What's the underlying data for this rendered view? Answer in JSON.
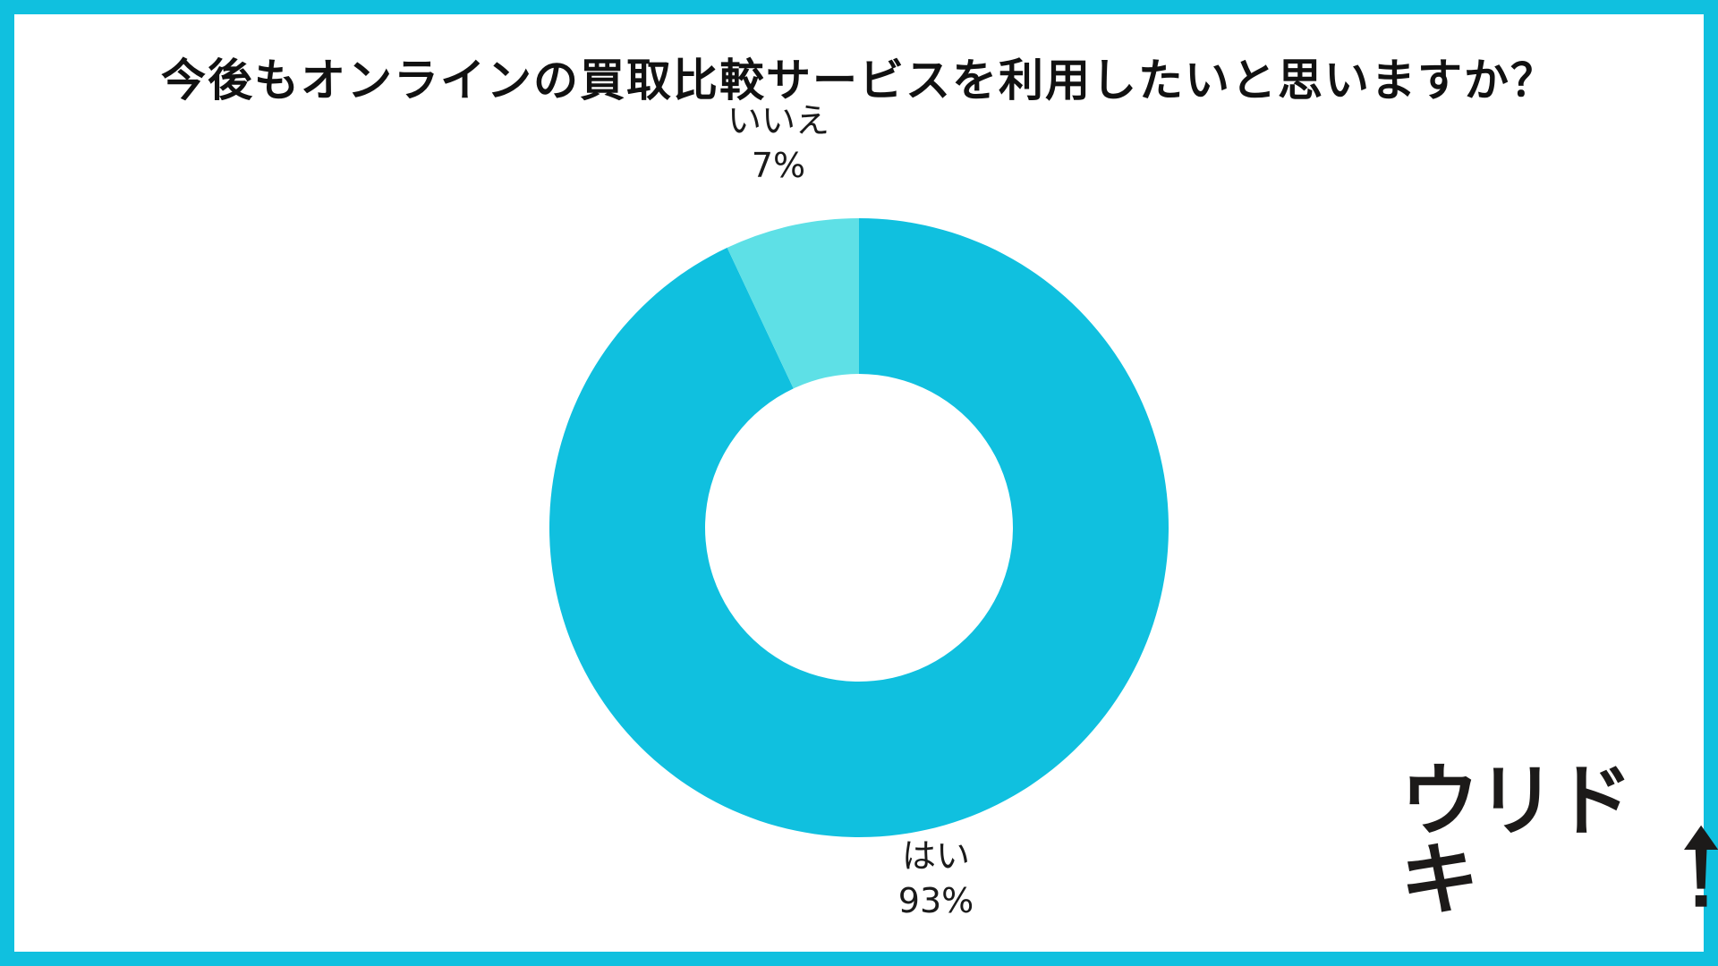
{
  "chart_data": {
    "type": "pie",
    "style": "donut",
    "title": "今後もオンラインの買取比較サービスを利用したいと思いますか？",
    "slices": [
      {
        "label": "はい",
        "value": 93,
        "value_label": "93%",
        "color": "#10c0df"
      },
      {
        "label": "いいえ",
        "value": 7,
        "value_label": "7%",
        "color": "#5ee0e6"
      }
    ],
    "start": "12 o'clock, clockwise"
  },
  "colors": {
    "frame": "#10c0df",
    "background": "#ffffff",
    "text": "#111111"
  },
  "logo": {
    "text": "ウリドキ",
    "icon": "up-arrow-icon"
  }
}
